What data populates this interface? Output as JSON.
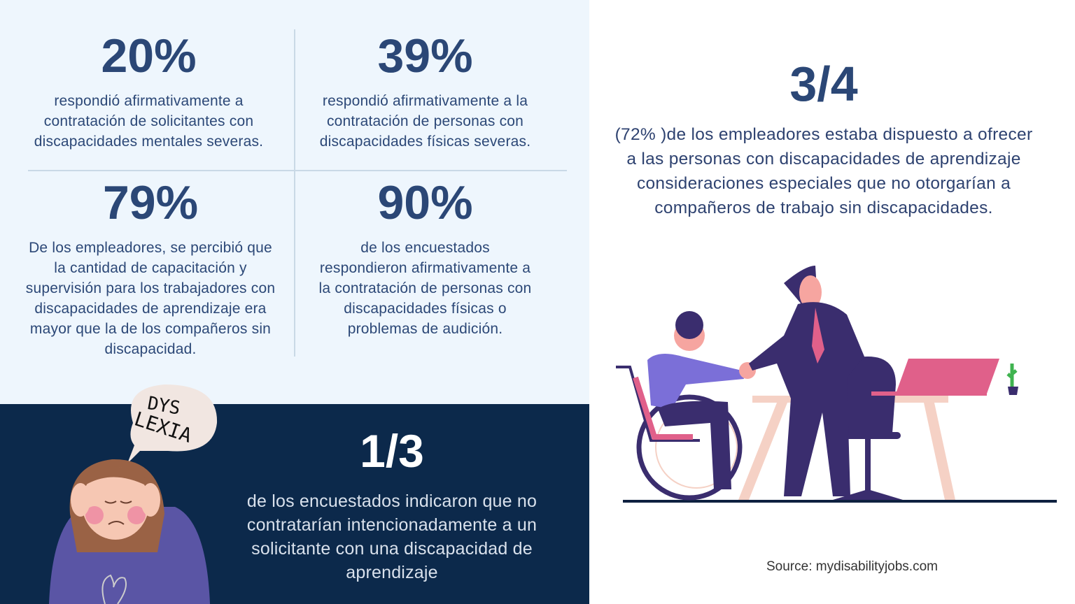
{
  "stats": [
    {
      "value": "20%",
      "text": "respondió afirmativamente a contratación de solicitantes con discapacidades mentales severas."
    },
    {
      "value": "39%",
      "text": "respondió afirmativamente a la contratación de personas con discapacidades físicas severas."
    },
    {
      "value": "79%",
      "text": "De los empleadores, se percibió que la cantidad de capacitación y supervisión para los trabajadores con discapacidades de aprendizaje era mayor que la de los compañeros sin discapacidad."
    },
    {
      "value": "90%",
      "text": "de los encuestados respondieron afirmativamente a la contratación de personas con discapacidades físicas o problemas de audición."
    }
  ],
  "dyslexia": {
    "value": "1/3",
    "text": "de los encuestados indicaron que no contratarían intencionadamente a un solicitante con una discapacidad de aprendizaje",
    "bubble_text": "DYS LEXIA"
  },
  "employers": {
    "value": "3/4",
    "text": "(72% )de los empleadores estaba dispuesto a ofrecer a las personas con discapacidades de aprendizaje consideraciones especiales que no otorgarían a compañeros de trabajo sin discapacidades."
  },
  "source": "Source: mydisabilityjobs.com",
  "colors": {
    "light_bg": "#eef6fd",
    "dark_bg": "#0c294b",
    "heading": "#2b4776",
    "accent_purple": "#3a2d6e",
    "accent_pink": "#e0608a"
  }
}
